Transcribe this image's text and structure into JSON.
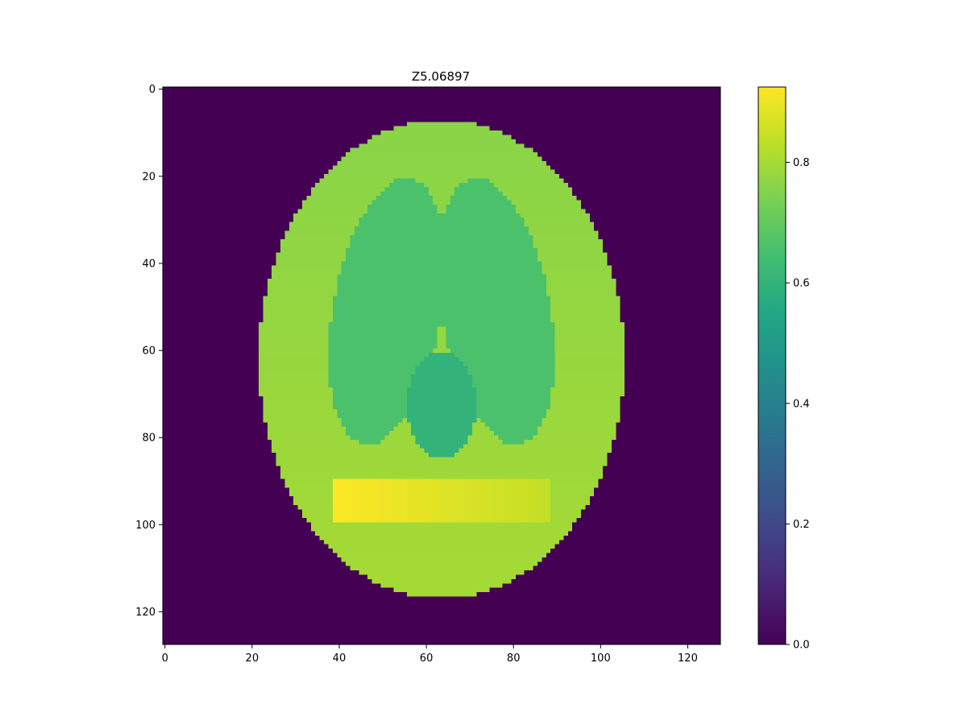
{
  "chart_data": {
    "type": "heatmap",
    "title": "Z5.06897",
    "xlabel": "",
    "ylabel": "",
    "x_range": [
      0,
      128
    ],
    "y_range": [
      0,
      128
    ],
    "y_inverted": true,
    "x_ticks": [
      "0",
      "20",
      "40",
      "60",
      "80",
      "100",
      "120"
    ],
    "y_ticks": [
      "0",
      "20",
      "40",
      "60",
      "80",
      "100",
      "120"
    ],
    "colormap": "viridis",
    "colorbar": {
      "range": [
        0.0,
        0.925
      ],
      "ticks": [
        "0.0",
        "0.2",
        "0.4",
        "0.6",
        "0.8"
      ]
    },
    "background_value": 0.0,
    "regions": [
      {
        "name": "outer ellipse",
        "shape": "ellipse",
        "center": [
          63.5,
          62
        ],
        "radii": [
          42,
          55
        ],
        "value": 0.76,
        "value_bottom": 0.8
      },
      {
        "name": "left lobe",
        "shape": "ellipse",
        "center": [
          51,
          51
        ],
        "radii": [
          12.5,
          31
        ],
        "rotation_deg": 10,
        "value": 0.66
      },
      {
        "name": "right lobe",
        "shape": "ellipse",
        "center": [
          76,
          51
        ],
        "radii": [
          12.5,
          31
        ],
        "rotation_deg": -10,
        "value": 0.66
      },
      {
        "name": "central ellipse",
        "shape": "ellipse",
        "center": [
          63.5,
          72.5
        ],
        "radii": [
          8,
          12.5
        ],
        "value": 0.6
      },
      {
        "name": "bar",
        "shape": "rect",
        "x_range": [
          38.5,
          88.5
        ],
        "y_range": [
          89.5,
          99.5
        ],
        "value_left": 0.925,
        "value_right": 0.84
      }
    ],
    "colors": {
      "viridis": [
        "#440154",
        "#482475",
        "#414487",
        "#355f8d",
        "#2a788e",
        "#21918c",
        "#22a884",
        "#44bf70",
        "#7ad151",
        "#bddf26",
        "#fde725"
      ]
    }
  }
}
